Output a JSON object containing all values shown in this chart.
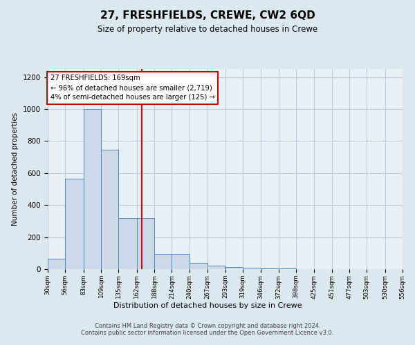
{
  "title": "27, FRESHFIELDS, CREWE, CW2 6QD",
  "subtitle": "Size of property relative to detached houses in Crewe",
  "xlabel": "Distribution of detached houses by size in Crewe",
  "ylabel": "Number of detached properties",
  "bar_edges": [
    30,
    56,
    83,
    109,
    135,
    162,
    188,
    214,
    240,
    267,
    293,
    319,
    346,
    372,
    398,
    425,
    451,
    477,
    503,
    530,
    556
  ],
  "bar_heights": [
    65,
    565,
    1000,
    745,
    320,
    320,
    95,
    95,
    40,
    20,
    15,
    10,
    5,
    3,
    2,
    2,
    1,
    1,
    1,
    1
  ],
  "property_line_x": 169,
  "property_line_color": "#cc0000",
  "bar_fill_color": "#ccd9e8",
  "bar_edge_color": "#5588bb",
  "annotation_text": "27 FRESHFIELDS: 169sqm\n← 96% of detached houses are smaller (2,719)\n4% of semi-detached houses are larger (125) →",
  "annotation_box_color": "#ffffff",
  "annotation_box_edge_color": "#cc0000",
  "footer_text": "Contains HM Land Registry data © Crown copyright and database right 2024.\nContains public sector information licensed under the Open Government Licence v3.0.",
  "ylim": [
    0,
    1250
  ],
  "yticks": [
    0,
    200,
    400,
    600,
    800,
    1000,
    1200
  ],
  "fig_bg_color": "#dce8f0",
  "plot_bg_color": "#e8f0f8",
  "grid_color": "#c0cdd8"
}
